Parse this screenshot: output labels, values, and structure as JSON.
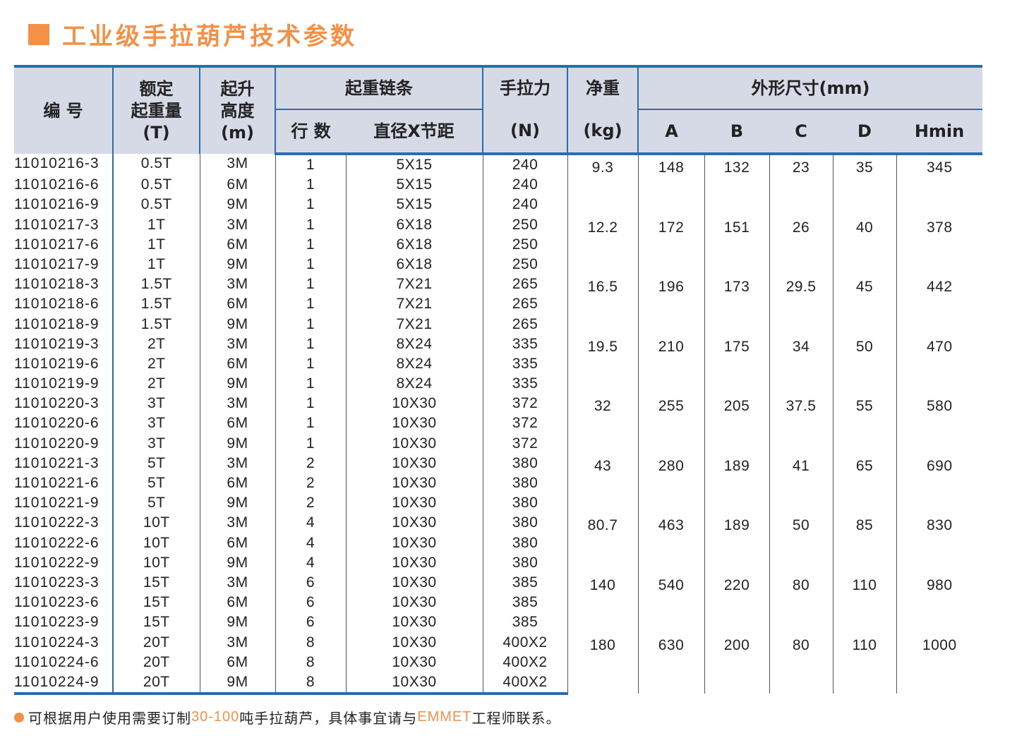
{
  "title": "工业级手拉葫芦技术参数",
  "accent_color": "#f39149",
  "border_color": "#2b6cb0",
  "header": {
    "code": "编 号",
    "load": [
      "额定",
      "起重量",
      "(T)"
    ],
    "lift": [
      "起升",
      "高度",
      "(m)"
    ],
    "chain": "起重链条",
    "lines": "行 数",
    "chain_size": "直径X节距",
    "force": [
      "手拉力",
      "(N)"
    ],
    "weight": [
      "净重",
      "(kg)"
    ],
    "dims": "外形尺寸(mm)",
    "A": "A",
    "B": "B",
    "C": "C",
    "D": "D",
    "Hmin": "Hmin"
  },
  "groups": [
    {
      "weight": "9.3",
      "A": "148",
      "B": "132",
      "C": "23",
      "D": "35",
      "Hmin": "345",
      "rows": [
        [
          "11010216-3",
          "0.5T",
          "3M",
          "1",
          "5X15",
          "240"
        ],
        [
          "11010216-6",
          "0.5T",
          "6M",
          "1",
          "5X15",
          "240"
        ],
        [
          "11010216-9",
          "0.5T",
          "9M",
          "1",
          "5X15",
          "240"
        ]
      ]
    },
    {
      "weight": "12.2",
      "A": "172",
      "B": "151",
      "C": "26",
      "D": "40",
      "Hmin": "378",
      "rows": [
        [
          "11010217-3",
          "1T",
          "3M",
          "1",
          "6X18",
          "250"
        ],
        [
          "11010217-6",
          "1T",
          "6M",
          "1",
          "6X18",
          "250"
        ],
        [
          "11010217-9",
          "1T",
          "9M",
          "1",
          "6X18",
          "250"
        ]
      ]
    },
    {
      "weight": "16.5",
      "A": "196",
      "B": "173",
      "C": "29.5",
      "D": "45",
      "Hmin": "442",
      "rows": [
        [
          "11010218-3",
          "1.5T",
          "3M",
          "1",
          "7X21",
          "265"
        ],
        [
          "11010218-6",
          "1.5T",
          "6M",
          "1",
          "7X21",
          "265"
        ],
        [
          "11010218-9",
          "1.5T",
          "9M",
          "1",
          "7X21",
          "265"
        ]
      ]
    },
    {
      "weight": "19.5",
      "A": "210",
      "B": "175",
      "C": "34",
      "D": "50",
      "Hmin": "470",
      "rows": [
        [
          "11010219-3",
          "2T",
          "3M",
          "1",
          "8X24",
          "335"
        ],
        [
          "11010219-6",
          "2T",
          "6M",
          "1",
          "8X24",
          "335"
        ],
        [
          "11010219-9",
          "2T",
          "9M",
          "1",
          "8X24",
          "335"
        ]
      ]
    },
    {
      "weight": "32",
      "A": "255",
      "B": "205",
      "C": "37.5",
      "D": "55",
      "Hmin": "580",
      "rows": [
        [
          "11010220-3",
          "3T",
          "3M",
          "1",
          "10X30",
          "372"
        ],
        [
          "11010220-6",
          "3T",
          "6M",
          "1",
          "10X30",
          "372"
        ],
        [
          "11010220-9",
          "3T",
          "9M",
          "1",
          "10X30",
          "372"
        ]
      ]
    },
    {
      "weight": "43",
      "A": "280",
      "B": "189",
      "C": "41",
      "D": "65",
      "Hmin": "690",
      "rows": [
        [
          "11010221-3",
          "5T",
          "3M",
          "2",
          "10X30",
          "380"
        ],
        [
          "11010221-6",
          "5T",
          "6M",
          "2",
          "10X30",
          "380"
        ],
        [
          "11010221-9",
          "5T",
          "9M",
          "2",
          "10X30",
          "380"
        ]
      ]
    },
    {
      "weight": "80.7",
      "A": "463",
      "B": "189",
      "C": "50",
      "D": "85",
      "Hmin": "830",
      "rows": [
        [
          "11010222-3",
          "10T",
          "3M",
          "4",
          "10X30",
          "380"
        ],
        [
          "11010222-6",
          "10T",
          "6M",
          "4",
          "10X30",
          "380"
        ],
        [
          "11010222-9",
          "10T",
          "9M",
          "4",
          "10X30",
          "380"
        ]
      ]
    },
    {
      "weight": "140",
      "A": "540",
      "B": "220",
      "C": "80",
      "D": "110",
      "Hmin": "980",
      "rows": [
        [
          "11010223-3",
          "15T",
          "3M",
          "6",
          "10X30",
          "385"
        ],
        [
          "11010223-6",
          "15T",
          "6M",
          "6",
          "10X30",
          "385"
        ],
        [
          "11010223-9",
          "15T",
          "9M",
          "6",
          "10X30",
          "385"
        ]
      ]
    },
    {
      "weight": "180",
      "A": "630",
      "B": "200",
      "C": "80",
      "D": "110",
      "Hmin": "1000",
      "rows": [
        [
          "11010224-3",
          "20T",
          "3M",
          "8",
          "10X30",
          "400X2"
        ],
        [
          "11010224-6",
          "20T",
          "6M",
          "8",
          "10X30",
          "400X2"
        ],
        [
          "11010224-9",
          "20T",
          "9M",
          "8",
          "10X30",
          "400X2"
        ]
      ]
    }
  ],
  "note": {
    "part1": "可根据用户使用需要订制",
    "range": "30-100",
    "part2": "吨手拉葫芦，具体事宜请与",
    "brand": "EMMET",
    "part3": "工程师联系。"
  }
}
